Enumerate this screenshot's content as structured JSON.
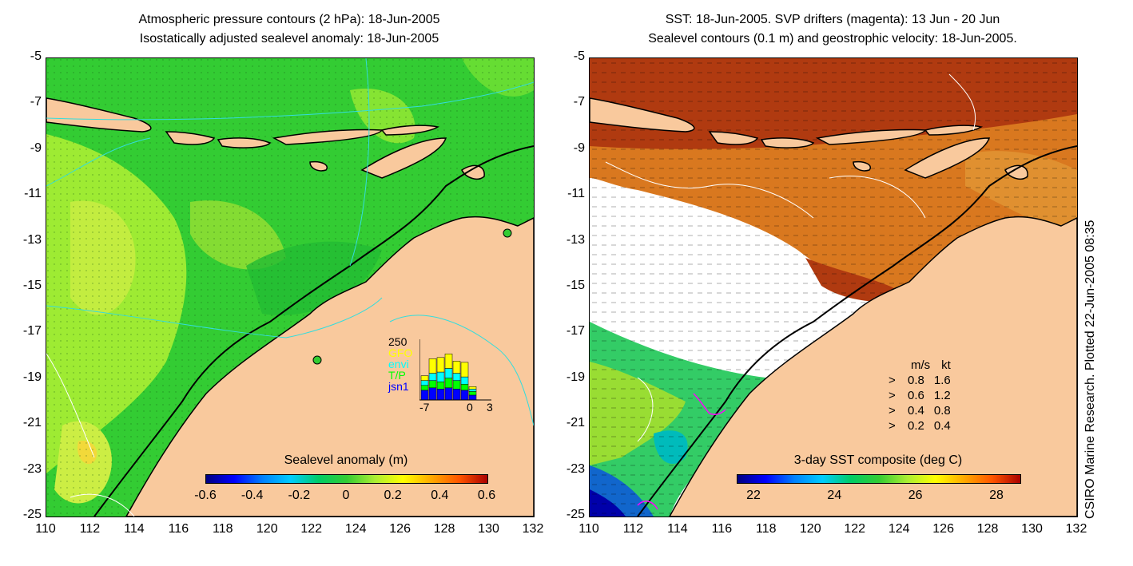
{
  "left_panel": {
    "title_line1": "Atmospheric pressure contours (2 hPa): 18-Jun-2005",
    "title_line2": "Isostatically adjusted sealevel anomaly: 18-Jun-2005",
    "colorbar_title": "Sealevel anomaly (m)",
    "colorbar_ticks": [
      "-0.6",
      "-0.4",
      "-0.2",
      "0",
      "0.2",
      "0.4",
      "0.6"
    ],
    "histogram": {
      "top_label": "250",
      "series_labels": [
        "GFO",
        "envi",
        "T/P",
        "jsn1"
      ],
      "series_colors": [
        "#ffff00",
        "#00ffff",
        "#00ff00",
        "#0000ff"
      ],
      "x_ticks": [
        "-7",
        "0",
        "3"
      ],
      "counts": [
        {
          "day": -6,
          "jsn1": 40,
          "T/P": 20,
          "envi": 20,
          "GFO": 20
        },
        {
          "day": -5,
          "jsn1": 50,
          "T/P": 30,
          "envi": 30,
          "GFO": 60
        },
        {
          "day": -4,
          "jsn1": 45,
          "T/P": 30,
          "envi": 40,
          "GFO": 60
        },
        {
          "day": -3,
          "jsn1": 50,
          "T/P": 40,
          "envi": 40,
          "GFO": 60
        },
        {
          "day": -2,
          "jsn1": 45,
          "T/P": 35,
          "envi": 30,
          "GFO": 50
        },
        {
          "day": -1,
          "jsn1": 40,
          "T/P": 25,
          "envi": 30,
          "GFO": 60
        },
        {
          "day": 0,
          "jsn1": 20,
          "T/P": 15,
          "envi": 10,
          "GFO": 10
        }
      ]
    }
  },
  "right_panel": {
    "title_line1": "SST: 18-Jun-2005. SVP drifters (magenta): 13 Jun - 20 Jun",
    "title_line2": "Sealevel contours (0.1 m) and geostrophic velocity: 18-Jun-2005.",
    "colorbar_title": "3-day SST composite (deg C)",
    "colorbar_ticks": [
      "22",
      "24",
      "26",
      "28"
    ],
    "velocity_legend": {
      "header_ms": "m/s",
      "header_kt": "kt",
      "rows": [
        {
          "ms": "0.8",
          "kt": "1.6"
        },
        {
          "ms": "0.6",
          "kt": "1.2"
        },
        {
          "ms": "0.4",
          "kt": "0.8"
        },
        {
          "ms": "0.2",
          "kt": "0.4"
        }
      ]
    }
  },
  "axes": {
    "y_ticks": [
      "-5",
      "-7",
      "-9",
      "-11",
      "-13",
      "-15",
      "-17",
      "-19",
      "-21",
      "-23",
      "-25"
    ],
    "x_ticks": [
      "110",
      "112",
      "114",
      "116",
      "118",
      "120",
      "122",
      "124",
      "126",
      "128",
      "130",
      "132"
    ]
  },
  "credit": "CSIRO Marine Research. Plotted 22-Jun-2005 08:35",
  "colors": {
    "land": "#f9c99d",
    "sea_green": "#33cc33",
    "sea_yellow_green": "#aaee33",
    "sst_warm": "#b03a10",
    "sst_orange": "#d9781f",
    "contour_cyan": "#33dddd"
  }
}
